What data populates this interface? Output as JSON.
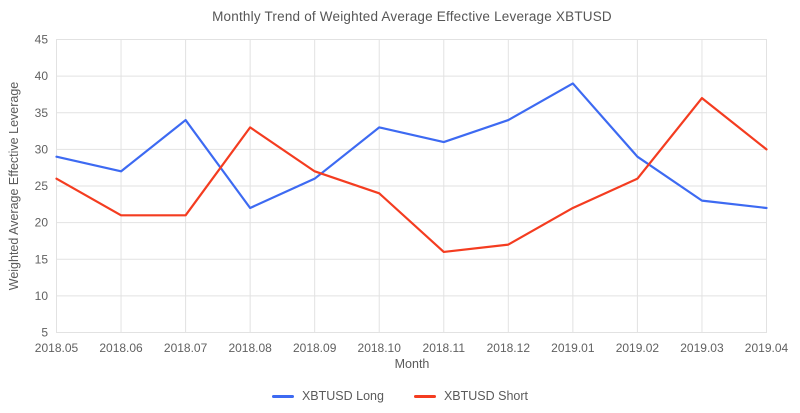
{
  "chart_data": {
    "type": "line",
    "title": "Monthly Trend of Weighted Average Effective Leverage XBTUSD",
    "xlabel": "Month",
    "ylabel": "Weighted Average Effective Leverage",
    "categories": [
      "2018.05",
      "2018.06",
      "2018.07",
      "2018.08",
      "2018.09",
      "2018.10",
      "2018.11",
      "2018.12",
      "2019.01",
      "2019.02",
      "2019.03",
      "2019.04"
    ],
    "series": [
      {
        "name": "XBTUSD Long",
        "color": "#3d6af2",
        "values": [
          29,
          27,
          34,
          22,
          26,
          33,
          31,
          34,
          39,
          29,
          23,
          22
        ]
      },
      {
        "name": "XBTUSD Short",
        "color": "#f43c20",
        "values": [
          26,
          21,
          21,
          33,
          27,
          24,
          16,
          17,
          22,
          26,
          37,
          30
        ]
      }
    ],
    "ylim": [
      5,
      45
    ],
    "yticks": [
      5,
      10,
      15,
      20,
      25,
      30,
      35,
      40,
      45
    ],
    "grid": true,
    "legend_position": "bottom"
  },
  "colors": {
    "grid": "#e2e2e2",
    "plot_border": "#e2e2e2",
    "tick_text": "#616161",
    "title_text": "#565656",
    "background": "#ffffff"
  }
}
